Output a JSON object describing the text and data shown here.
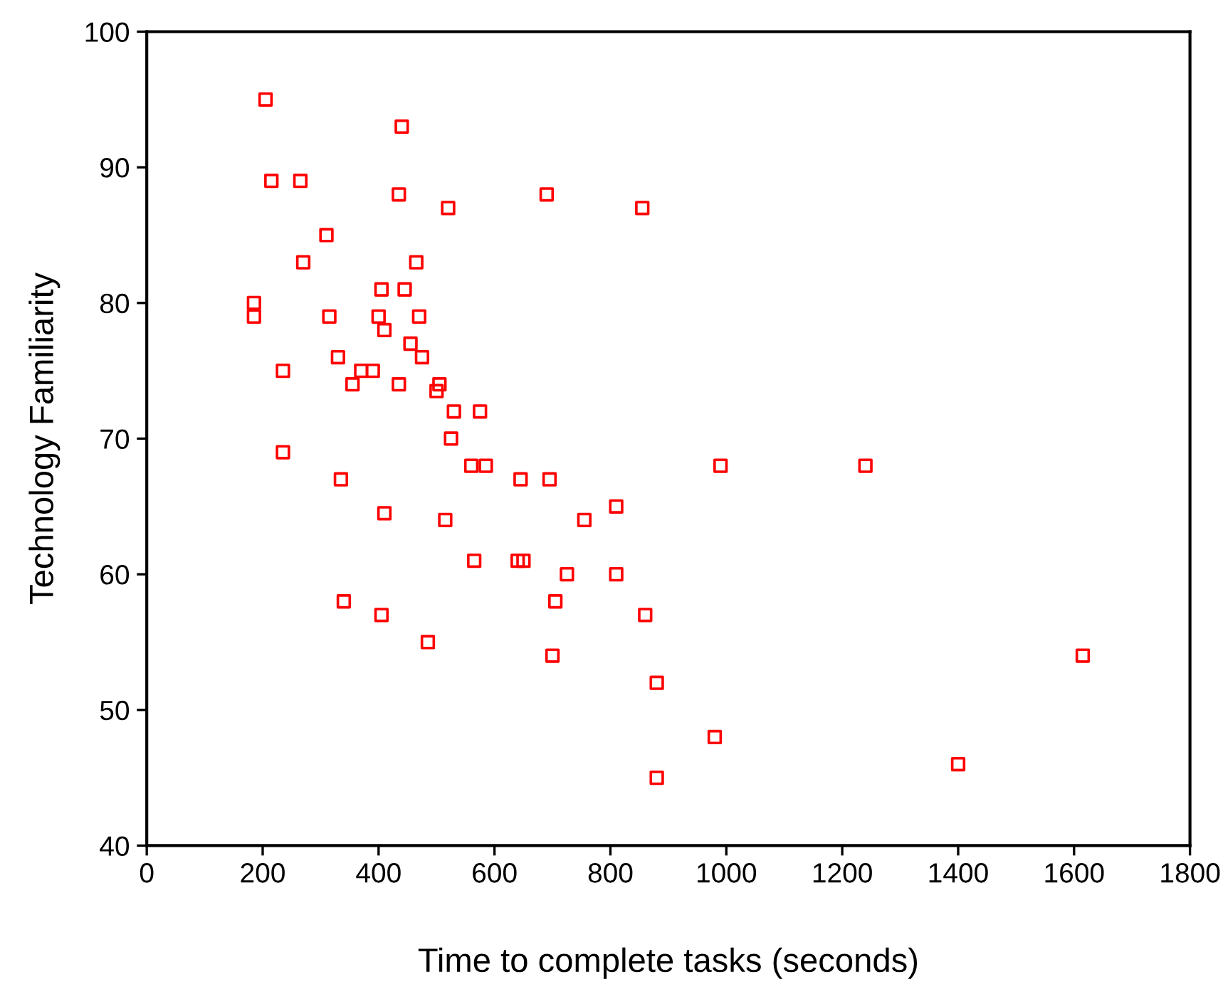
{
  "chart_data": {
    "type": "scatter",
    "xlabel": "Time to complete tasks (seconds)",
    "ylabel": "Technology Familiarity",
    "xlim": [
      0,
      1800
    ],
    "xticks": [
      0,
      200,
      400,
      600,
      800,
      1000,
      1200,
      1400,
      1600,
      1800
    ],
    "ylim": [
      40,
      100
    ],
    "yticks": [
      40,
      50,
      60,
      70,
      80,
      90,
      100
    ],
    "grid": false,
    "legend": false,
    "marker": "square",
    "series": [
      {
        "color": "#ff0000",
        "x": [
          205,
          440,
          215,
          265,
          435,
          520,
          690,
          310,
          270,
          465,
          405,
          445,
          185,
          185,
          315,
          400,
          470,
          410,
          455,
          475,
          330,
          235,
          370,
          390,
          355,
          435,
          505,
          500,
          530,
          575,
          525,
          235,
          560,
          585,
          335,
          645,
          695,
          410,
          515,
          755,
          565,
          640,
          650,
          725,
          340,
          705,
          405,
          485,
          990,
          1240,
          810,
          810,
          860,
          1615,
          880,
          855,
          700,
          980,
          880,
          1400
        ],
        "values": [
          95,
          93,
          89,
          89,
          88,
          87,
          88,
          85,
          83,
          83,
          81,
          81,
          80,
          79,
          79,
          79,
          79,
          78,
          77,
          76,
          76,
          75,
          75,
          75,
          74,
          74,
          74,
          73.5,
          72,
          72,
          70,
          69,
          68,
          68,
          67,
          67,
          67,
          64.5,
          64,
          64,
          61,
          61,
          61,
          60,
          58,
          58,
          57,
          55,
          68,
          68,
          65,
          60,
          57,
          54,
          52,
          87,
          54,
          48,
          45,
          46
        ]
      }
    ]
  }
}
